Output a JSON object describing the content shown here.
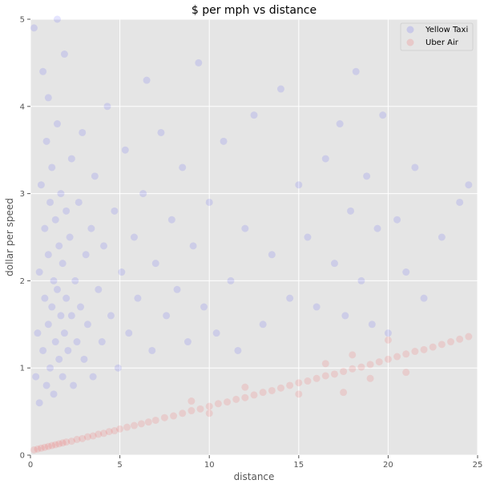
{
  "chart_data": {
    "type": "scatter",
    "title": "$ per mph vs distance",
    "xlabel": "distance",
    "ylabel": "dollar per speed",
    "xlim": [
      0,
      25
    ],
    "ylim": [
      0,
      5
    ],
    "xticks": [
      "0",
      "5",
      "10",
      "15",
      "20",
      "25"
    ],
    "yticks": [
      "0",
      "1",
      "2",
      "3",
      "4",
      "5"
    ],
    "grid": true,
    "legend_position": "top-right",
    "series": [
      {
        "name": "Yellow Taxi",
        "color": "#0000ff",
        "alpha": 0.1,
        "points": [
          [
            0.3,
            0.9
          ],
          [
            0.4,
            1.4
          ],
          [
            0.5,
            2.1
          ],
          [
            0.5,
            0.6
          ],
          [
            0.6,
            3.1
          ],
          [
            0.7,
            1.2
          ],
          [
            0.7,
            4.4
          ],
          [
            0.8,
            1.8
          ],
          [
            0.8,
            2.6
          ],
          [
            0.9,
            0.8
          ],
          [
            0.9,
            3.6
          ],
          [
            1.0,
            1.5
          ],
          [
            1.0,
            2.3
          ],
          [
            1.0,
            4.1
          ],
          [
            1.1,
            1.0
          ],
          [
            1.1,
            2.9
          ],
          [
            1.2,
            1.7
          ],
          [
            1.2,
            3.3
          ],
          [
            1.3,
            0.7
          ],
          [
            1.3,
            2.0
          ],
          [
            1.4,
            1.3
          ],
          [
            1.4,
            2.7
          ],
          [
            1.5,
            1.9
          ],
          [
            1.5,
            3.8
          ],
          [
            1.6,
            1.1
          ],
          [
            1.6,
            2.4
          ],
          [
            1.7,
            1.6
          ],
          [
            1.7,
            3.0
          ],
          [
            1.8,
            0.9
          ],
          [
            1.8,
            2.2
          ],
          [
            1.9,
            1.4
          ],
          [
            1.9,
            4.6
          ],
          [
            2.0,
            1.8
          ],
          [
            2.0,
            2.8
          ],
          [
            2.1,
            1.2
          ],
          [
            2.2,
            2.5
          ],
          [
            2.3,
            1.6
          ],
          [
            2.3,
            3.4
          ],
          [
            2.4,
            0.8
          ],
          [
            2.5,
            2.0
          ],
          [
            2.6,
            1.3
          ],
          [
            2.7,
            2.9
          ],
          [
            2.8,
            1.7
          ],
          [
            2.9,
            3.7
          ],
          [
            3.0,
            1.1
          ],
          [
            3.1,
            2.3
          ],
          [
            3.2,
            1.5
          ],
          [
            3.4,
            2.6
          ],
          [
            3.5,
            0.9
          ],
          [
            3.6,
            3.2
          ],
          [
            3.8,
            1.9
          ],
          [
            4.0,
            1.3
          ],
          [
            4.1,
            2.4
          ],
          [
            4.3,
            4.0
          ],
          [
            4.5,
            1.6
          ],
          [
            4.7,
            2.8
          ],
          [
            4.9,
            1.0
          ],
          [
            5.1,
            2.1
          ],
          [
            5.3,
            3.5
          ],
          [
            5.5,
            1.4
          ],
          [
            5.8,
            2.5
          ],
          [
            6.0,
            1.8
          ],
          [
            6.3,
            3.0
          ],
          [
            6.5,
            4.3
          ],
          [
            6.8,
            1.2
          ],
          [
            7.0,
            2.2
          ],
          [
            7.3,
            3.7
          ],
          [
            7.6,
            1.6
          ],
          [
            7.9,
            2.7
          ],
          [
            8.2,
            1.9
          ],
          [
            8.5,
            3.3
          ],
          [
            8.8,
            1.3
          ],
          [
            9.1,
            2.4
          ],
          [
            9.4,
            4.5
          ],
          [
            9.7,
            1.7
          ],
          [
            10.0,
            2.9
          ],
          [
            10.4,
            1.4
          ],
          [
            10.8,
            3.6
          ],
          [
            11.2,
            2.0
          ],
          [
            11.6,
            1.2
          ],
          [
            12.0,
            2.6
          ],
          [
            12.5,
            3.9
          ],
          [
            13.0,
            1.5
          ],
          [
            13.5,
            2.3
          ],
          [
            14.0,
            4.2
          ],
          [
            14.5,
            1.8
          ],
          [
            15.0,
            3.1
          ],
          [
            15.5,
            2.5
          ],
          [
            16.0,
            1.7
          ],
          [
            16.5,
            3.4
          ],
          [
            17.0,
            2.2
          ],
          [
            17.3,
            3.8
          ],
          [
            17.6,
            1.6
          ],
          [
            17.9,
            2.8
          ],
          [
            18.2,
            4.4
          ],
          [
            18.5,
            2.0
          ],
          [
            18.8,
            3.2
          ],
          [
            19.1,
            1.5
          ],
          [
            19.4,
            2.6
          ],
          [
            19.7,
            3.9
          ],
          [
            20.0,
            1.4
          ],
          [
            20.5,
            2.7
          ],
          [
            21.0,
            2.1
          ],
          [
            21.5,
            3.3
          ],
          [
            22.0,
            1.8
          ],
          [
            23.0,
            2.5
          ],
          [
            24.0,
            2.9
          ],
          [
            24.5,
            3.1
          ],
          [
            0.2,
            4.9
          ],
          [
            1.5,
            5.0
          ]
        ]
      },
      {
        "name": "Uber Air",
        "color": "#ff0000",
        "alpha": 0.1,
        "points": [
          [
            0.2,
            0.06
          ],
          [
            0.4,
            0.07
          ],
          [
            0.6,
            0.08
          ],
          [
            0.8,
            0.09
          ],
          [
            1.0,
            0.1
          ],
          [
            1.2,
            0.11
          ],
          [
            1.4,
            0.12
          ],
          [
            1.6,
            0.13
          ],
          [
            1.8,
            0.14
          ],
          [
            2.0,
            0.15
          ],
          [
            2.3,
            0.16
          ],
          [
            2.6,
            0.18
          ],
          [
            2.9,
            0.19
          ],
          [
            3.2,
            0.21
          ],
          [
            3.5,
            0.22
          ],
          [
            3.8,
            0.24
          ],
          [
            4.1,
            0.25
          ],
          [
            4.4,
            0.27
          ],
          [
            4.7,
            0.28
          ],
          [
            5.0,
            0.3
          ],
          [
            5.4,
            0.32
          ],
          [
            5.8,
            0.34
          ],
          [
            6.2,
            0.36
          ],
          [
            6.6,
            0.38
          ],
          [
            7.0,
            0.4
          ],
          [
            7.5,
            0.43
          ],
          [
            8.0,
            0.45
          ],
          [
            8.5,
            0.48
          ],
          [
            9.0,
            0.51
          ],
          [
            9.5,
            0.53
          ],
          [
            10.0,
            0.56
          ],
          [
            10.5,
            0.59
          ],
          [
            11.0,
            0.61
          ],
          [
            11.5,
            0.64
          ],
          [
            12.0,
            0.66
          ],
          [
            12.5,
            0.69
          ],
          [
            13.0,
            0.72
          ],
          [
            13.5,
            0.74
          ],
          [
            14.0,
            0.77
          ],
          [
            14.5,
            0.8
          ],
          [
            15.0,
            0.83
          ],
          [
            15.5,
            0.85
          ],
          [
            16.0,
            0.88
          ],
          [
            16.5,
            0.91
          ],
          [
            17.0,
            0.93
          ],
          [
            17.5,
            0.96
          ],
          [
            18.0,
            0.99
          ],
          [
            18.5,
            1.01
          ],
          [
            19.0,
            1.04
          ],
          [
            19.5,
            1.07
          ],
          [
            20.0,
            1.1
          ],
          [
            20.5,
            1.13
          ],
          [
            21.0,
            1.16
          ],
          [
            21.5,
            1.19
          ],
          [
            22.0,
            1.21
          ],
          [
            22.5,
            1.24
          ],
          [
            23.0,
            1.27
          ],
          [
            23.5,
            1.3
          ],
          [
            24.0,
            1.33
          ],
          [
            24.5,
            1.36
          ],
          [
            9.0,
            0.62
          ],
          [
            10.0,
            0.48
          ],
          [
            12.0,
            0.78
          ],
          [
            15.0,
            0.7
          ],
          [
            16.5,
            1.05
          ],
          [
            17.5,
            0.72
          ],
          [
            18.0,
            1.15
          ],
          [
            19.0,
            0.88
          ],
          [
            20.0,
            1.32
          ],
          [
            21.0,
            0.95
          ]
        ]
      }
    ]
  }
}
